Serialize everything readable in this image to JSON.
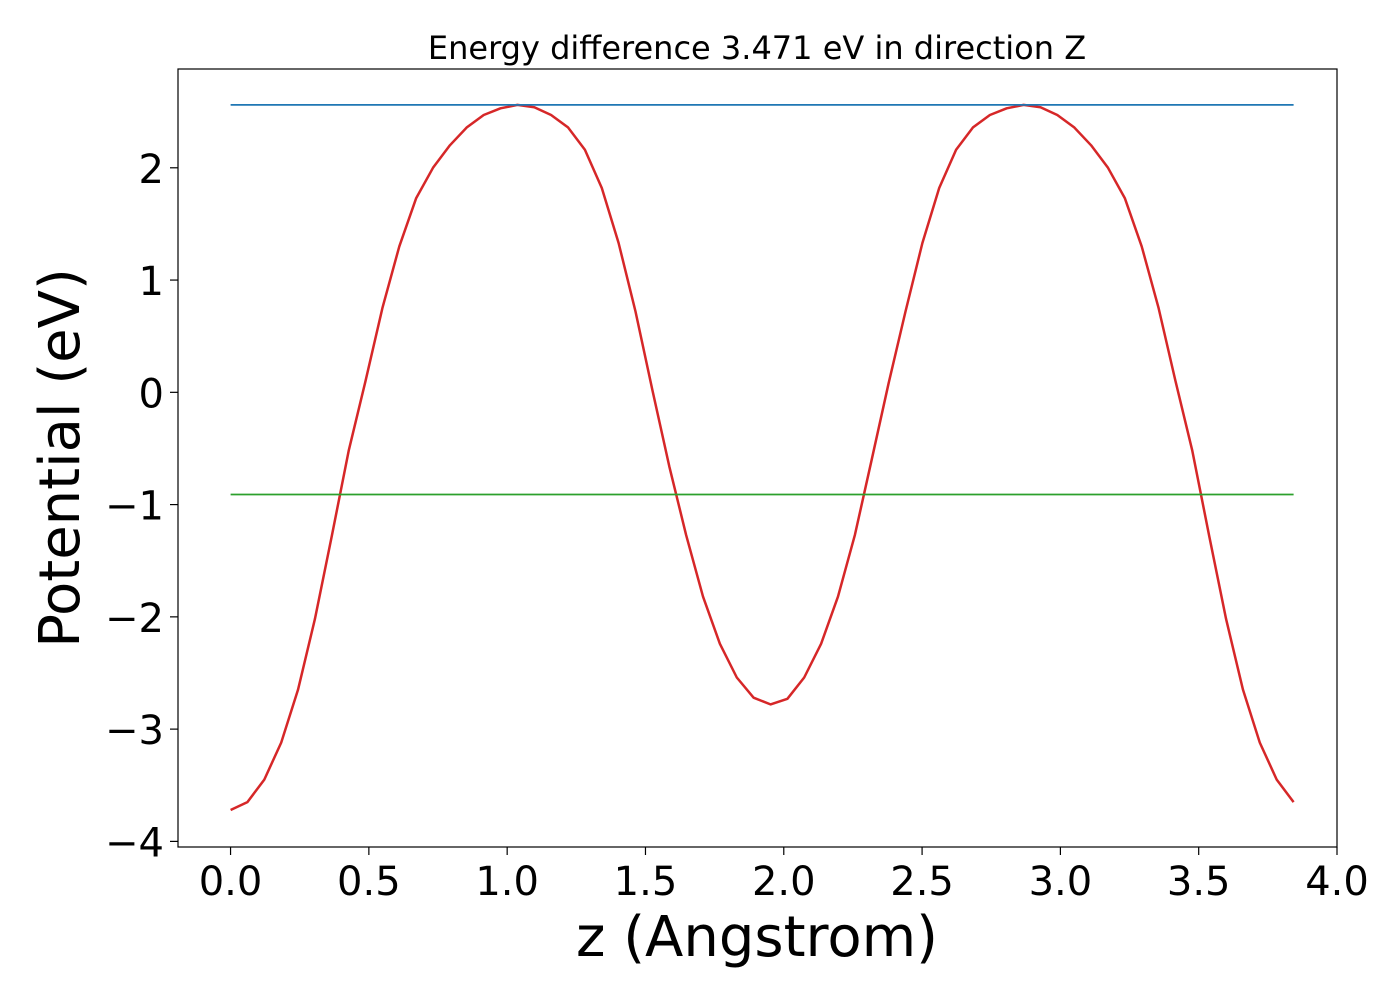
{
  "chart_data": {
    "type": "line",
    "title": "Energy difference 3.471 eV in direction Z",
    "xlabel": "z (Angstrom)",
    "ylabel": "Potential (eV)",
    "xlim": [
      -0.19,
      4.0
    ],
    "ylim": [
      -4.05,
      2.88
    ],
    "xticks": [
      0.0,
      0.5,
      1.0,
      1.5,
      2.0,
      2.5,
      3.0,
      3.5,
      4.0
    ],
    "xtick_labels": [
      "0.0",
      "0.5",
      "1.0",
      "1.5",
      "2.0",
      "2.5",
      "3.0",
      "3.5",
      "4.0"
    ],
    "yticks": [
      2,
      1,
      0,
      -1,
      -2,
      -3,
      -4
    ],
    "ytick_labels": [
      "2",
      "1",
      "0",
      "−1",
      "−2",
      "−3",
      "−4"
    ],
    "grid": false,
    "series": [
      {
        "color": "#d62728",
        "x": [
          0.0,
          0.061,
          0.122,
          0.183,
          0.244,
          0.305,
          0.366,
          0.427,
          0.488,
          0.549,
          0.61,
          0.671,
          0.732,
          0.793,
          0.854,
          0.915,
          0.976,
          1.037,
          1.098,
          1.159,
          1.22,
          1.281,
          1.342,
          1.403,
          1.464,
          1.525,
          1.586,
          1.647,
          1.708,
          1.769,
          1.83,
          1.891,
          1.952,
          2.013,
          2.074,
          2.135,
          2.196,
          2.257,
          2.318,
          2.379,
          2.44,
          2.501,
          2.562,
          2.623,
          2.684,
          2.745,
          2.806,
          2.867,
          2.928,
          2.989,
          3.05,
          3.111,
          3.172,
          3.233,
          3.294,
          3.355,
          3.416,
          3.477,
          3.538,
          3.599,
          3.66,
          3.721,
          3.782,
          3.843
        ],
        "y": [
          -3.72,
          -3.65,
          -3.45,
          -3.12,
          -2.65,
          -2.02,
          -1.28,
          -0.52,
          0.1,
          0.75,
          1.3,
          1.73,
          2.0,
          2.2,
          2.36,
          2.47,
          2.53,
          2.56,
          2.54,
          2.47,
          2.36,
          2.16,
          1.82,
          1.33,
          0.72,
          0.02,
          -0.66,
          -1.27,
          -1.82,
          -2.24,
          -2.54,
          -2.72,
          -2.78,
          -2.73,
          -2.54,
          -2.24,
          -1.82,
          -1.27,
          -0.6,
          0.08,
          0.72,
          1.33,
          1.82,
          2.16,
          2.36,
          2.47,
          2.53,
          2.56,
          2.54,
          2.47,
          2.36,
          2.2,
          2.0,
          1.73,
          1.3,
          0.75,
          0.1,
          -0.52,
          -1.28,
          -2.02,
          -2.65,
          -3.12,
          -3.45,
          -3.65
        ]
      },
      {
        "color": "#1f77b4",
        "x": [
          0.0,
          3.843
        ],
        "y": [
          2.56,
          2.56
        ]
      },
      {
        "color": "#2ca02c",
        "x": [
          0.0,
          3.843
        ],
        "y": [
          -0.91,
          -0.91
        ]
      }
    ]
  }
}
